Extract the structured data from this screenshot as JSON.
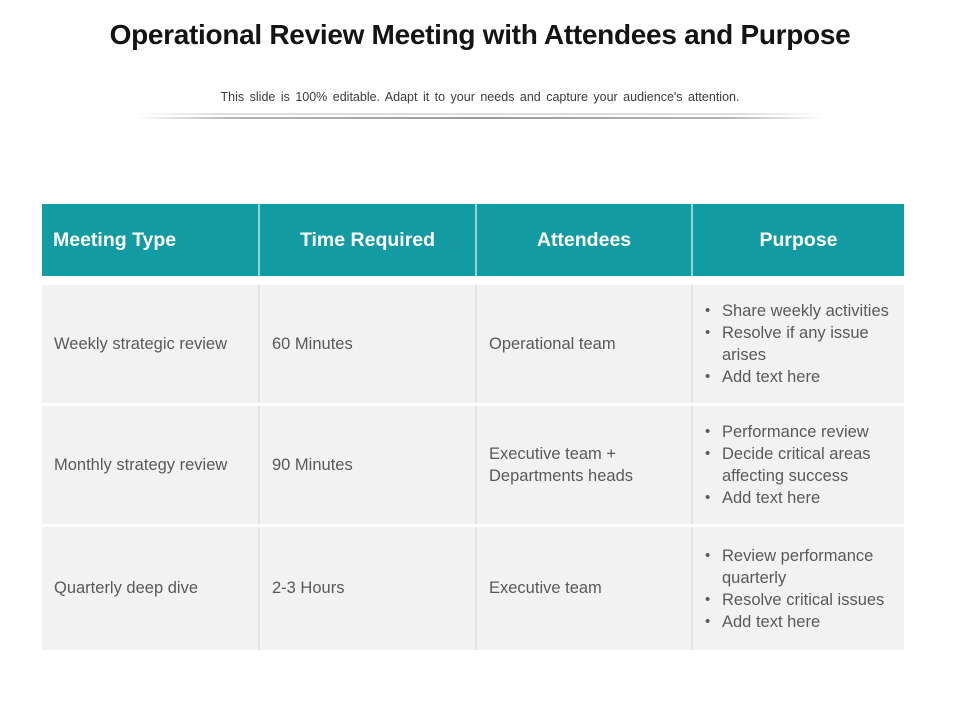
{
  "slide": {
    "title": "Operational Review Meeting with Attendees and Purpose",
    "subtitle": "This slide is 100% editable. Adapt it to your needs and capture your audience's attention."
  },
  "colors": {
    "header_bg": "#139ba4",
    "header_text": "#ffffff",
    "row_bg": "#f2f2f2",
    "body_text": "#595959",
    "title_text": "#141414"
  },
  "table": {
    "bullet_glyph": "•",
    "headers": [
      "Meeting Type",
      "Time Required",
      "Attendees",
      "Purpose"
    ],
    "rows": [
      {
        "meeting_type": "Weekly strategic review",
        "time_required": "60 Minutes",
        "attendees": "Operational team",
        "purpose": [
          "Share weekly activities",
          "Resolve if any issue arises",
          "Add text here"
        ]
      },
      {
        "meeting_type": "Monthly strategy review",
        "time_required": "90 Minutes",
        "attendees": "Executive team + Departments heads",
        "purpose": [
          "Performance review",
          "Decide critical areas affecting success",
          "Add text here"
        ]
      },
      {
        "meeting_type": "Quarterly deep dive",
        "time_required": "2-3 Hours",
        "attendees": "Executive team",
        "purpose": [
          "Review performance quarterly",
          "Resolve critical issues",
          "Add text here"
        ]
      }
    ]
  }
}
